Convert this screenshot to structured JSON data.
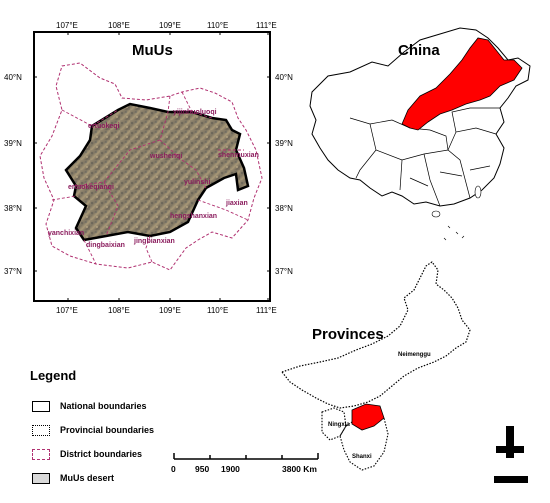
{
  "main_map": {
    "title": "MuUs",
    "lon_ticks": [
      "107°E",
      "108°E",
      "109°E",
      "110°E",
      "111°E"
    ],
    "lat_ticks": [
      "40°N",
      "39°N",
      "38°N",
      "37°N"
    ],
    "districts": [
      "ertuokeqi",
      "yijinhuoluoqi",
      "wushenqi",
      "shenmuxian",
      "ertuokeqianqi",
      "yulinshi",
      "jiaxian",
      "hengshanxian",
      "yanchixian",
      "dingbaixian",
      "jingbianxian"
    ]
  },
  "china_map": {
    "title": "China",
    "highlight_color": "#ff0000"
  },
  "provinces_map": {
    "title": "Provinces",
    "labels": [
      "Neimenggu",
      "Ningxia",
      "Shanxi"
    ],
    "highlight_color": "#ff0000"
  },
  "legend": {
    "title": "Legend",
    "items": [
      {
        "label": "National boundaries",
        "style": "solid"
      },
      {
        "label": "Provincial boundaries",
        "style": "dotted"
      },
      {
        "label": "District boundaries",
        "style": "dashed",
        "color": "#b03070"
      },
      {
        "label": "MuUs desert",
        "style": "filled",
        "color": "#d9d9d9"
      }
    ]
  },
  "scale_bar": {
    "labels": [
      "0",
      "950",
      "1900",
      "3800 Km"
    ]
  }
}
